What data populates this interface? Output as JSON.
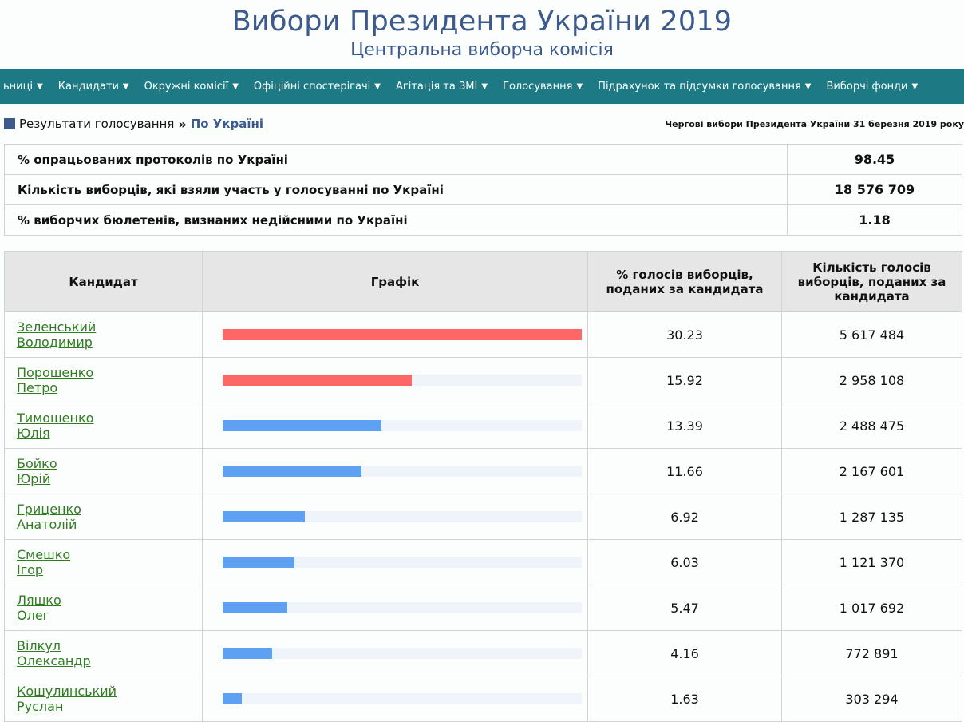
{
  "header": {
    "title": "Вибори Президента України 2019",
    "subtitle": "Центральна виборча комісія"
  },
  "nav": {
    "items": [
      {
        "label": "ьниці"
      },
      {
        "label": "Кандидати"
      },
      {
        "label": "Окружні комісії"
      },
      {
        "label": "Офіційні спостерігачі"
      },
      {
        "label": "Агітація та ЗМІ"
      },
      {
        "label": "Голосування"
      },
      {
        "label": "Підрахунок та підсумки голосування"
      },
      {
        "label": "Виборчі фонди"
      }
    ]
  },
  "breadcrumb": {
    "parent": "Результати голосування",
    "separator": "»",
    "current": "По Україні",
    "election": "Чергові вибори Президента України 31 березня 2019 року"
  },
  "summary": [
    {
      "label": "% опрацьованих протоколів по Україні",
      "value": "98.45"
    },
    {
      "label": "Кількість виборців, які взяли участь у голосуванні по Україні",
      "value": "18 576 709"
    },
    {
      "label": "% виборчих бюлетенів, визнаних недійсними по Україні",
      "value": "1.18"
    }
  ],
  "results": {
    "headers": {
      "candidate": "Кандидат",
      "chart": "Графік",
      "pct": "% голосів виборців, поданих за кандидата",
      "votes": "Кількість голосів виборців, поданих за кандидата"
    },
    "bar_max_pct": 30.23,
    "colors": {
      "top": "#ff6666",
      "other": "#5ea1f2",
      "track": "#eef4fa"
    },
    "rows": [
      {
        "surname": "Зеленський",
        "given": "Володимир",
        "pct": 30.23,
        "pct_text": "30.23",
        "votes": "5 617 484",
        "highlight": true
      },
      {
        "surname": "Порошенко",
        "given": "Петро",
        "pct": 15.92,
        "pct_text": "15.92",
        "votes": "2 958 108",
        "highlight": true
      },
      {
        "surname": "Тимошенко",
        "given": "Юлія",
        "pct": 13.39,
        "pct_text": "13.39",
        "votes": "2 488 475",
        "highlight": false
      },
      {
        "surname": "Бойко",
        "given": "Юрій",
        "pct": 11.66,
        "pct_text": "11.66",
        "votes": "2 167 601",
        "highlight": false
      },
      {
        "surname": "Гриценко",
        "given": "Анатолій",
        "pct": 6.92,
        "pct_text": "6.92",
        "votes": "1 287 135",
        "highlight": false
      },
      {
        "surname": "Смешко",
        "given": "Ігор",
        "pct": 6.03,
        "pct_text": "6.03",
        "votes": "1 121 370",
        "highlight": false
      },
      {
        "surname": "Ляшко",
        "given": "Олег",
        "pct": 5.47,
        "pct_text": "5.47",
        "votes": "1 017 692",
        "highlight": false
      },
      {
        "surname": "Вілкул",
        "given": "Олександр",
        "pct": 4.16,
        "pct_text": "4.16",
        "votes": "772 891",
        "highlight": false
      },
      {
        "surname": "Кошулинський",
        "given": "Руслан",
        "pct": 1.63,
        "pct_text": "1.63",
        "votes": "303 294",
        "highlight": false
      }
    ]
  }
}
